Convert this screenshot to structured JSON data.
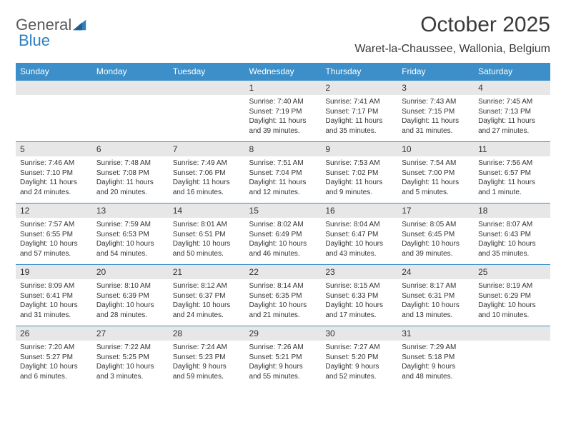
{
  "logo": {
    "text1": "General",
    "text2": "Blue"
  },
  "title": "October 2025",
  "location": "Waret-la-Chaussee, Wallonia, Belgium",
  "day_headers": [
    "Sunday",
    "Monday",
    "Tuesday",
    "Wednesday",
    "Thursday",
    "Friday",
    "Saturday"
  ],
  "colors": {
    "header_bg": "#3c8fc9",
    "header_text": "#ffffff",
    "daynum_bg": "#e7e7e7",
    "week_border": "#3c8fc9",
    "text": "#333333"
  },
  "typography": {
    "title_fontsize_pt": 22,
    "location_fontsize_pt": 12,
    "header_fontsize_pt": 9,
    "body_fontsize_pt": 7.5
  },
  "weeks": [
    [
      {
        "num": "",
        "lines": []
      },
      {
        "num": "",
        "lines": []
      },
      {
        "num": "",
        "lines": []
      },
      {
        "num": "1",
        "lines": [
          "Sunrise: 7:40 AM",
          "Sunset: 7:19 PM",
          "Daylight: 11 hours",
          "and 39 minutes."
        ]
      },
      {
        "num": "2",
        "lines": [
          "Sunrise: 7:41 AM",
          "Sunset: 7:17 PM",
          "Daylight: 11 hours",
          "and 35 minutes."
        ]
      },
      {
        "num": "3",
        "lines": [
          "Sunrise: 7:43 AM",
          "Sunset: 7:15 PM",
          "Daylight: 11 hours",
          "and 31 minutes."
        ]
      },
      {
        "num": "4",
        "lines": [
          "Sunrise: 7:45 AM",
          "Sunset: 7:13 PM",
          "Daylight: 11 hours",
          "and 27 minutes."
        ]
      }
    ],
    [
      {
        "num": "5",
        "lines": [
          "Sunrise: 7:46 AM",
          "Sunset: 7:10 PM",
          "Daylight: 11 hours",
          "and 24 minutes."
        ]
      },
      {
        "num": "6",
        "lines": [
          "Sunrise: 7:48 AM",
          "Sunset: 7:08 PM",
          "Daylight: 11 hours",
          "and 20 minutes."
        ]
      },
      {
        "num": "7",
        "lines": [
          "Sunrise: 7:49 AM",
          "Sunset: 7:06 PM",
          "Daylight: 11 hours",
          "and 16 minutes."
        ]
      },
      {
        "num": "8",
        "lines": [
          "Sunrise: 7:51 AM",
          "Sunset: 7:04 PM",
          "Daylight: 11 hours",
          "and 12 minutes."
        ]
      },
      {
        "num": "9",
        "lines": [
          "Sunrise: 7:53 AM",
          "Sunset: 7:02 PM",
          "Daylight: 11 hours",
          "and 9 minutes."
        ]
      },
      {
        "num": "10",
        "lines": [
          "Sunrise: 7:54 AM",
          "Sunset: 7:00 PM",
          "Daylight: 11 hours",
          "and 5 minutes."
        ]
      },
      {
        "num": "11",
        "lines": [
          "Sunrise: 7:56 AM",
          "Sunset: 6:57 PM",
          "Daylight: 11 hours",
          "and 1 minute."
        ]
      }
    ],
    [
      {
        "num": "12",
        "lines": [
          "Sunrise: 7:57 AM",
          "Sunset: 6:55 PM",
          "Daylight: 10 hours",
          "and 57 minutes."
        ]
      },
      {
        "num": "13",
        "lines": [
          "Sunrise: 7:59 AM",
          "Sunset: 6:53 PM",
          "Daylight: 10 hours",
          "and 54 minutes."
        ]
      },
      {
        "num": "14",
        "lines": [
          "Sunrise: 8:01 AM",
          "Sunset: 6:51 PM",
          "Daylight: 10 hours",
          "and 50 minutes."
        ]
      },
      {
        "num": "15",
        "lines": [
          "Sunrise: 8:02 AM",
          "Sunset: 6:49 PM",
          "Daylight: 10 hours",
          "and 46 minutes."
        ]
      },
      {
        "num": "16",
        "lines": [
          "Sunrise: 8:04 AM",
          "Sunset: 6:47 PM",
          "Daylight: 10 hours",
          "and 43 minutes."
        ]
      },
      {
        "num": "17",
        "lines": [
          "Sunrise: 8:05 AM",
          "Sunset: 6:45 PM",
          "Daylight: 10 hours",
          "and 39 minutes."
        ]
      },
      {
        "num": "18",
        "lines": [
          "Sunrise: 8:07 AM",
          "Sunset: 6:43 PM",
          "Daylight: 10 hours",
          "and 35 minutes."
        ]
      }
    ],
    [
      {
        "num": "19",
        "lines": [
          "Sunrise: 8:09 AM",
          "Sunset: 6:41 PM",
          "Daylight: 10 hours",
          "and 31 minutes."
        ]
      },
      {
        "num": "20",
        "lines": [
          "Sunrise: 8:10 AM",
          "Sunset: 6:39 PM",
          "Daylight: 10 hours",
          "and 28 minutes."
        ]
      },
      {
        "num": "21",
        "lines": [
          "Sunrise: 8:12 AM",
          "Sunset: 6:37 PM",
          "Daylight: 10 hours",
          "and 24 minutes."
        ]
      },
      {
        "num": "22",
        "lines": [
          "Sunrise: 8:14 AM",
          "Sunset: 6:35 PM",
          "Daylight: 10 hours",
          "and 21 minutes."
        ]
      },
      {
        "num": "23",
        "lines": [
          "Sunrise: 8:15 AM",
          "Sunset: 6:33 PM",
          "Daylight: 10 hours",
          "and 17 minutes."
        ]
      },
      {
        "num": "24",
        "lines": [
          "Sunrise: 8:17 AM",
          "Sunset: 6:31 PM",
          "Daylight: 10 hours",
          "and 13 minutes."
        ]
      },
      {
        "num": "25",
        "lines": [
          "Sunrise: 8:19 AM",
          "Sunset: 6:29 PM",
          "Daylight: 10 hours",
          "and 10 minutes."
        ]
      }
    ],
    [
      {
        "num": "26",
        "lines": [
          "Sunrise: 7:20 AM",
          "Sunset: 5:27 PM",
          "Daylight: 10 hours",
          "and 6 minutes."
        ]
      },
      {
        "num": "27",
        "lines": [
          "Sunrise: 7:22 AM",
          "Sunset: 5:25 PM",
          "Daylight: 10 hours",
          "and 3 minutes."
        ]
      },
      {
        "num": "28",
        "lines": [
          "Sunrise: 7:24 AM",
          "Sunset: 5:23 PM",
          "Daylight: 9 hours",
          "and 59 minutes."
        ]
      },
      {
        "num": "29",
        "lines": [
          "Sunrise: 7:26 AM",
          "Sunset: 5:21 PM",
          "Daylight: 9 hours",
          "and 55 minutes."
        ]
      },
      {
        "num": "30",
        "lines": [
          "Sunrise: 7:27 AM",
          "Sunset: 5:20 PM",
          "Daylight: 9 hours",
          "and 52 minutes."
        ]
      },
      {
        "num": "31",
        "lines": [
          "Sunrise: 7:29 AM",
          "Sunset: 5:18 PM",
          "Daylight: 9 hours",
          "and 48 minutes."
        ]
      },
      {
        "num": "",
        "lines": []
      }
    ]
  ]
}
